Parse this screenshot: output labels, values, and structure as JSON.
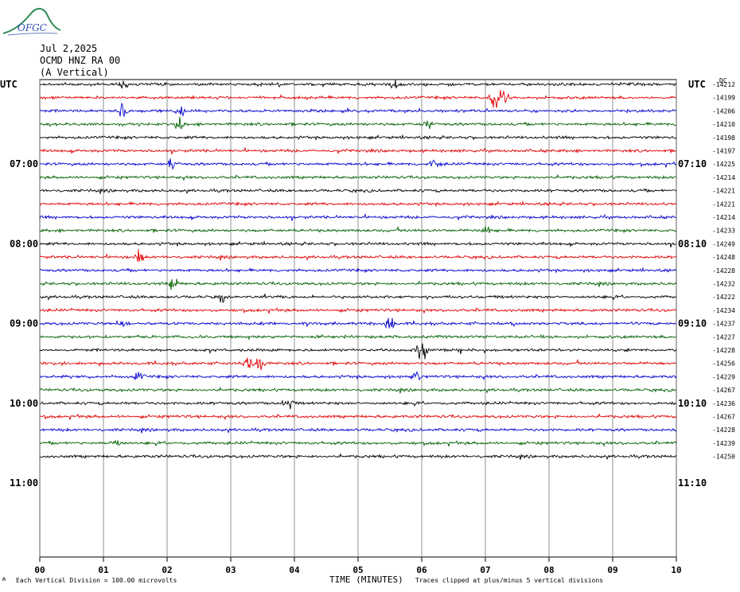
{
  "logo": {
    "text": "OFGC"
  },
  "header": {
    "date": "Jul 2,2025",
    "station": "OCMD HNZ RA 00",
    "component": "(A Vertical)"
  },
  "tz_left": "UTC",
  "tz_right": "UTC",
  "dc_label": "DC",
  "footer": {
    "vertical_division": "Each Vertical Division =  100.00 microvolts",
    "time_label": "TIME (MINUTES)",
    "clip_note": "Traces clipped at plus/minus 5 vertical divisions"
  },
  "chart_data": {
    "type": "line",
    "title": "",
    "xlabel": "TIME (MINUTES)",
    "xlim": [
      0,
      10
    ],
    "x_ticks": [
      "00",
      "01",
      "02",
      "03",
      "04",
      "05",
      "06",
      "07",
      "08",
      "09",
      "10"
    ],
    "hour_labels_left": [
      "07:00",
      "08:00",
      "09:00",
      "10:00",
      "11:00"
    ],
    "hour_labels_right": [
      "07:10",
      "08:10",
      "09:10",
      "10:10",
      "11:10"
    ],
    "rows_per_hour": 6,
    "trace_colors": [
      "#000000",
      "#e00000",
      "#0000d0",
      "#006000"
    ],
    "dc_offsets": [
      "-14212",
      "-14199",
      "-14206",
      "-14210",
      "-14198",
      "-14197",
      "-14225",
      "-14214",
      "-14221",
      "-14221",
      "-14214",
      "-14233",
      "-14249",
      "-14248",
      "-14228",
      "-14232",
      "-14222",
      "-14234",
      "-14237",
      "-14227",
      "-14228",
      "-14256",
      "-14229",
      "-14267",
      "-14236",
      "-14267",
      "-14228",
      "-14239",
      "-14250"
    ],
    "events": [
      {
        "row": 0,
        "minute": 1.3,
        "amp": 1.4
      },
      {
        "row": 0,
        "minute": 5.6,
        "amp": 1.5
      },
      {
        "row": 1,
        "minute": 7.15,
        "amp": 4.0
      },
      {
        "row": 1,
        "minute": 7.3,
        "amp": 2.5
      },
      {
        "row": 2,
        "minute": 1.3,
        "amp": 2.2
      },
      {
        "row": 2,
        "minute": 2.2,
        "amp": 1.6
      },
      {
        "row": 3,
        "minute": 2.2,
        "amp": 1.6
      },
      {
        "row": 3,
        "minute": 6.1,
        "amp": 1.5
      },
      {
        "row": 6,
        "minute": 2.1,
        "amp": 1.5
      },
      {
        "row": 6,
        "minute": 6.2,
        "amp": 1.4
      },
      {
        "row": 11,
        "minute": 7.0,
        "amp": 1.6
      },
      {
        "row": 13,
        "minute": 1.55,
        "amp": 1.8
      },
      {
        "row": 15,
        "minute": 2.1,
        "amp": 1.8
      },
      {
        "row": 16,
        "minute": 2.85,
        "amp": 1.4
      },
      {
        "row": 18,
        "minute": 1.3,
        "amp": 1.5
      },
      {
        "row": 18,
        "minute": 5.5,
        "amp": 2.2
      },
      {
        "row": 20,
        "minute": 6.0,
        "amp": 2.6
      },
      {
        "row": 21,
        "minute": 3.3,
        "amp": 2.3
      },
      {
        "row": 21,
        "minute": 3.45,
        "amp": 2.5
      },
      {
        "row": 22,
        "minute": 1.55,
        "amp": 1.6
      },
      {
        "row": 22,
        "minute": 5.9,
        "amp": 1.4
      },
      {
        "row": 24,
        "minute": 3.9,
        "amp": 1.3
      },
      {
        "row": 27,
        "minute": 1.2,
        "amp": 1.2
      }
    ]
  }
}
